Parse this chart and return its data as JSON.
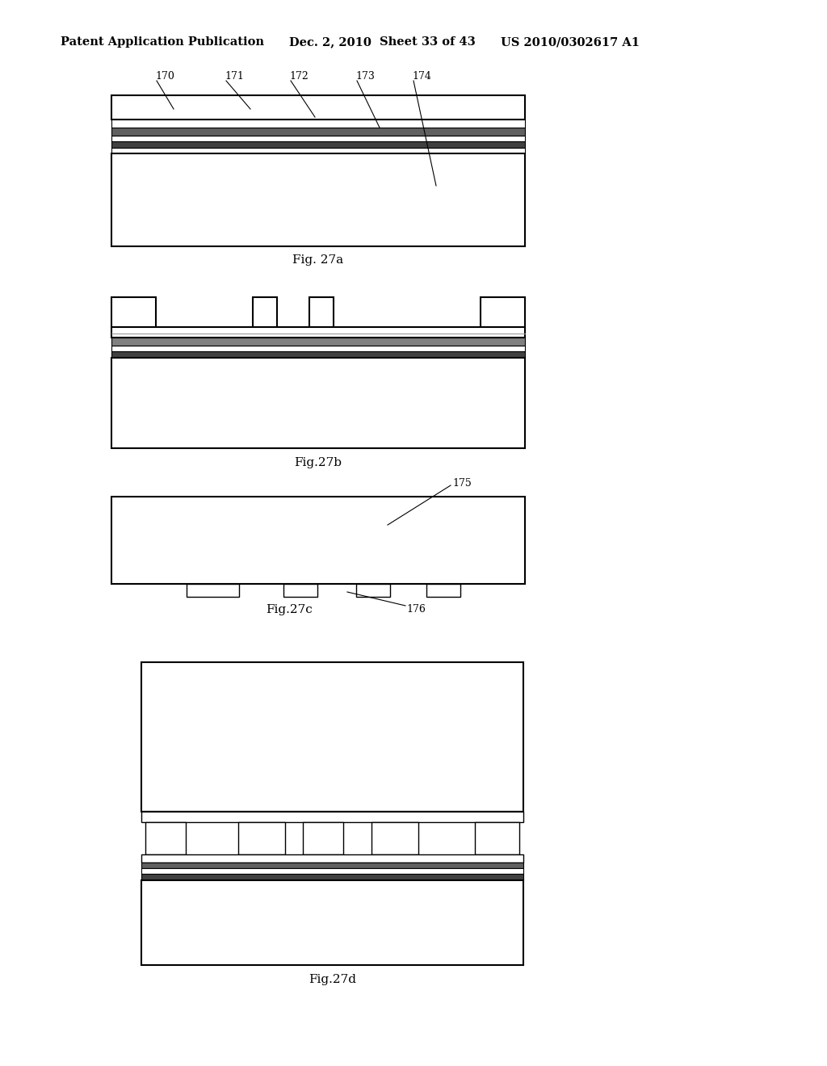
{
  "background_color": "#ffffff",
  "header_left": "Patent Application Publication",
  "header_mid1": "Dec. 2, 2010",
  "header_mid2": "Sheet 33 of 43",
  "header_right": "US 2010/0302617 A1",
  "fig_labels": [
    "Fig. 27a",
    "Fig.27b",
    "Fig.27c",
    "Fig.27d"
  ],
  "label_170": "170",
  "label_171": "171",
  "label_172": "172",
  "label_173": "173",
  "label_174": "174",
  "label_175": "175",
  "label_176": "176",
  "line_color": "#000000",
  "lw_main": 1.5,
  "lw_thin": 0.8
}
